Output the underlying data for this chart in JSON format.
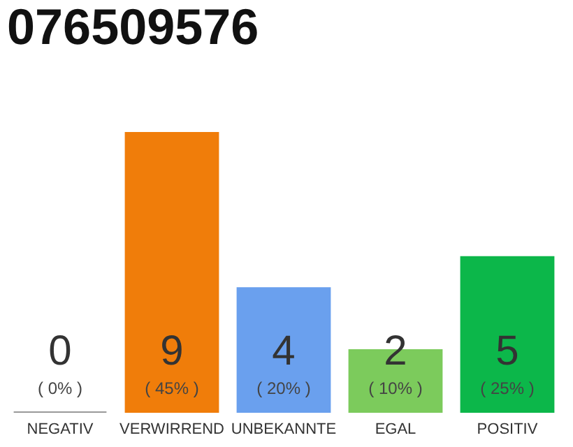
{
  "chart_data": {
    "type": "bar",
    "title": "076509576",
    "categories": [
      "NEGATIV",
      "VERWIRREND",
      "UNBEKANNTE",
      "EGAL",
      "POSITIV"
    ],
    "values": [
      0,
      9,
      4,
      2,
      5
    ],
    "colors": [
      "#999999",
      "#f07d0a",
      "#6aa0ee",
      "#7ccb5c",
      "#0cb74a"
    ],
    "data_labels": true,
    "annotations": [
      "( 0% )",
      "( 45% )",
      "( 20% )",
      "( 10% )",
      "( 25% )"
    ]
  }
}
